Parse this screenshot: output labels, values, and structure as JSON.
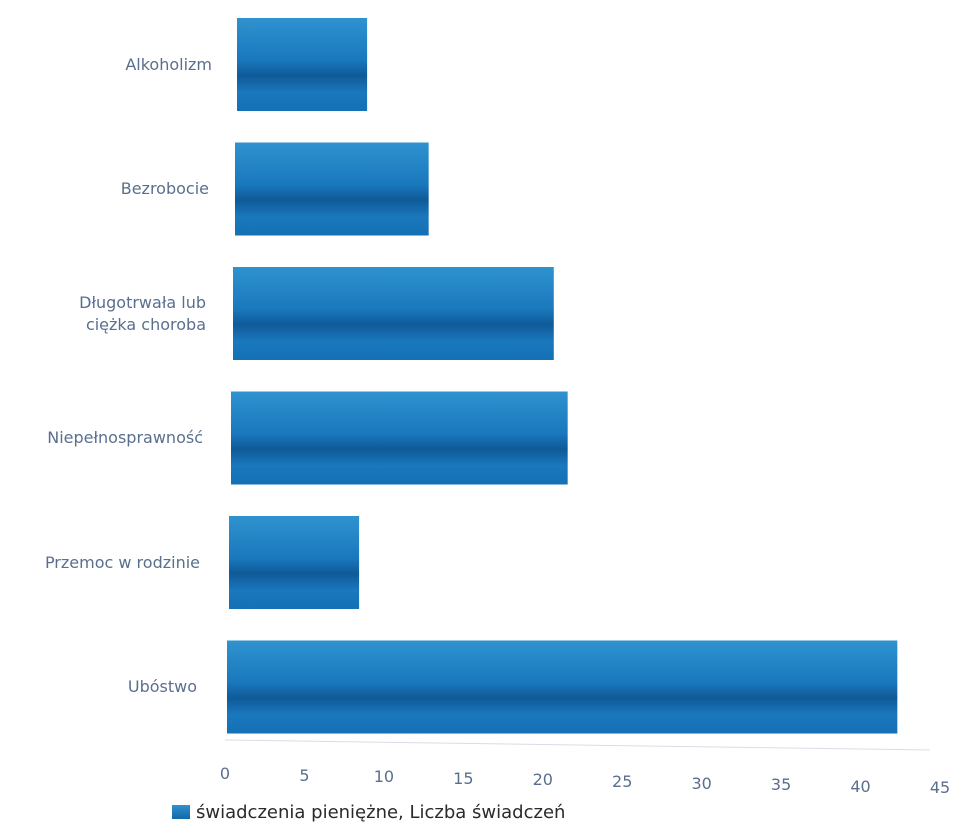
{
  "chart_data": {
    "type": "bar",
    "orientation": "horizontal",
    "categories": [
      "Alkoholizm",
      "Bezrobocie",
      "Długotrwała lub\nciężka choroba",
      "Niepełnosprawność",
      "Przemoc w rodzinie",
      "Ubóstwo"
    ],
    "series": [
      {
        "name": "świadczenia pieniężne, Liczba świadczeń",
        "values": [
          8,
          12,
          20,
          21,
          8,
          42
        ]
      }
    ],
    "xlim": [
      0,
      45
    ],
    "xticks": [
      0,
      5,
      10,
      15,
      20,
      25,
      30,
      35,
      40,
      45
    ],
    "legend_position": "bottom-left",
    "grid": false,
    "bar_color": "#1a78bd",
    "bar_color_light": "#3a9ad6",
    "bar_color_dark": "#0f5a98"
  }
}
